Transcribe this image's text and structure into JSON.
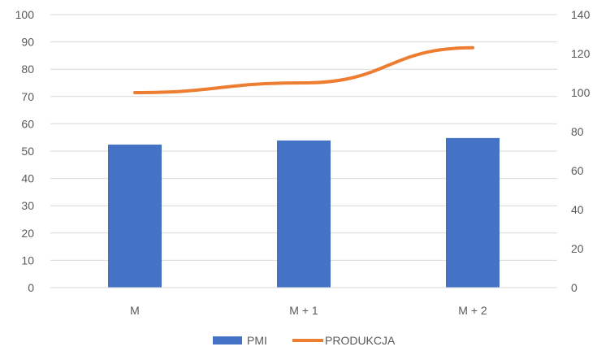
{
  "chart_data": {
    "type": "bar",
    "categories": [
      "M",
      "M + 1",
      "M + 2"
    ],
    "series": [
      {
        "name": "PMI",
        "type": "bar",
        "axis": "left",
        "values": [
          52.4,
          53.9,
          54.8
        ],
        "color": "#4472C4"
      },
      {
        "name": "PRODUKCJA",
        "type": "line",
        "axis": "right",
        "values": [
          100,
          105,
          123
        ],
        "color": "#ED7D31"
      }
    ],
    "y_left": {
      "range": [
        0,
        100
      ],
      "ticks": [
        "0",
        "10",
        "20",
        "30",
        "40",
        "50",
        "60",
        "70",
        "80",
        "90",
        "100"
      ]
    },
    "y_right": {
      "range": [
        0,
        140
      ],
      "ticks": [
        "0",
        "20",
        "40",
        "60",
        "80",
        "100",
        "120",
        "140"
      ]
    },
    "grid": true,
    "legend_position": "bottom",
    "title": "",
    "xlabel": "",
    "ylabel": ""
  }
}
